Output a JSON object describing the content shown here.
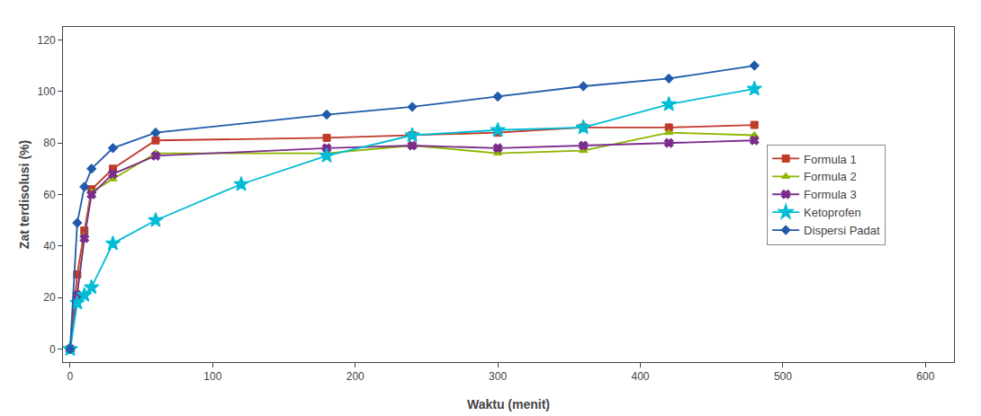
{
  "chart_data": {
    "type": "line",
    "xlabel": "Waktu (menit)",
    "ylabel": "Zat terdisolusi (%)",
    "series": [
      {
        "name": "Formula 1",
        "color": "#c0392b",
        "marker": "square",
        "x": [
          0,
          5,
          10,
          15,
          30,
          60,
          180,
          240,
          300,
          360,
          420,
          480
        ],
        "values": [
          0,
          29,
          46,
          62,
          70,
          81,
          82,
          83,
          84,
          86,
          86,
          87
        ]
      },
      {
        "name": "Formula 2",
        "color": "#8db600",
        "marker": "triangle-up",
        "x": [
          0,
          5,
          10,
          15,
          30,
          60,
          180,
          240,
          300,
          360,
          420,
          480
        ],
        "values": [
          0,
          22,
          44,
          61,
          66,
          76,
          76,
          79,
          76,
          77,
          84,
          83
        ]
      },
      {
        "name": "Formula 3",
        "color": "#7b2d8b",
        "marker": "x",
        "x": [
          0,
          5,
          10,
          15,
          30,
          60,
          180,
          240,
          300,
          360,
          420,
          480
        ],
        "values": [
          0,
          21,
          43,
          60,
          68,
          75,
          78,
          79,
          78,
          79,
          80,
          81
        ]
      },
      {
        "name": "Ketoprofen",
        "color": "#00bcd4",
        "marker": "star",
        "x": [
          0,
          5,
          10,
          15,
          30,
          60,
          120,
          180,
          240,
          300,
          360,
          420,
          480
        ],
        "values": [
          0,
          18,
          21,
          24,
          41,
          50,
          64,
          75,
          83,
          85,
          86,
          95,
          101
        ]
      },
      {
        "name": "Dispersi Padat",
        "color": "#1f5baa",
        "marker": "diamond",
        "x": [
          0,
          5,
          10,
          15,
          30,
          60,
          180,
          240,
          300,
          360,
          420,
          480
        ],
        "values": [
          0,
          49,
          63,
          70,
          78,
          84,
          91,
          94,
          98,
          102,
          105,
          110
        ]
      }
    ],
    "xlim": [
      -5,
      620
    ],
    "ylim": [
      -5,
      125
    ],
    "xticks": [
      0,
      100,
      200,
      300,
      400,
      500,
      600
    ],
    "yticks": [
      0,
      20,
      40,
      60,
      80,
      100,
      120
    ],
    "grid": false,
    "legend": "right"
  }
}
